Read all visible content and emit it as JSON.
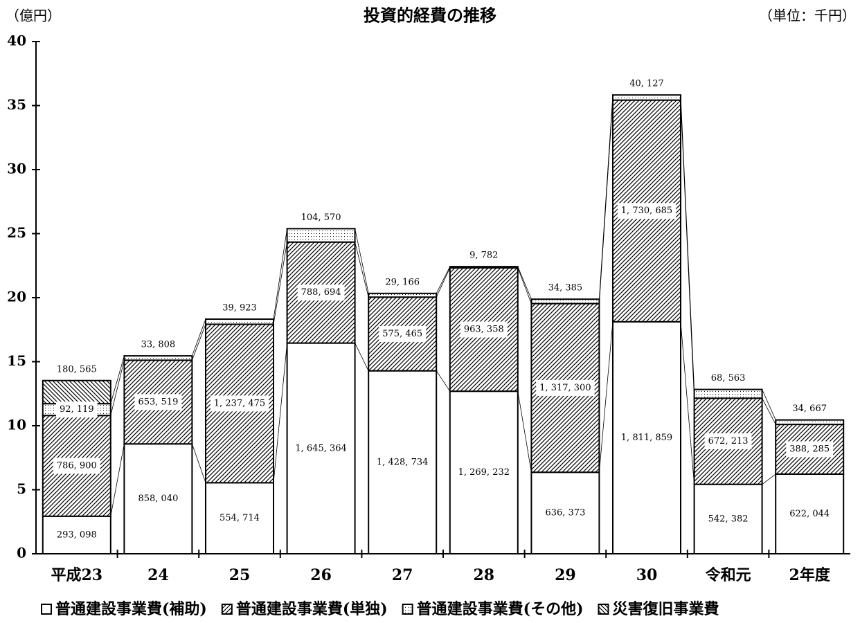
{
  "chart_data": {
    "type": "stacked_bar",
    "title": "投資的経費の推移",
    "y_axis_label": "（億円）",
    "unit_note": "（単位：千円）",
    "categories": [
      "平成23",
      "24",
      "25",
      "26",
      "27",
      "28",
      "29",
      "30",
      "令和元",
      "2年度"
    ],
    "ylim": [
      0,
      40
    ],
    "yticks": [
      0,
      5,
      10,
      15,
      20,
      25,
      30,
      35,
      40
    ],
    "series": [
      {
        "name": "普通建設事業費(補助)",
        "values": [
          2.93098,
          8.5804,
          5.54714,
          16.45364,
          14.28734,
          12.69232,
          6.36373,
          18.11859,
          5.42382,
          6.22044
        ],
        "value_labels": [
          "293, 098",
          "858, 040",
          "554, 714",
          "1, 645, 364",
          "1, 428, 734",
          "1, 269, 232",
          "636, 373",
          "1, 811, 859",
          "542, 382",
          "622, 044"
        ]
      },
      {
        "name": "普通建設事業費(単独)",
        "values": [
          7.869,
          6.53519,
          12.37475,
          7.88694,
          5.75465,
          9.63358,
          13.173,
          17.30685,
          6.72213,
          3.88285
        ],
        "value_labels": [
          "786, 900",
          "653, 519",
          "1, 237, 475",
          "788, 694",
          "575, 465",
          "963, 358",
          "1, 317, 300",
          "1, 730, 685",
          "672, 213",
          "388, 285"
        ]
      },
      {
        "name": "普通建設事業費(その他)",
        "values": [
          0.92119,
          0.33808,
          0.39923,
          1.0457,
          0.29166,
          0.09782,
          0.34385,
          0.40127,
          0.68563,
          0.34667
        ],
        "value_labels": [
          "92, 119",
          "33, 808",
          "39, 923",
          "104, 570",
          "29, 166",
          "9, 782",
          "34, 385",
          "40, 127",
          "68, 563",
          "34, 667"
        ]
      },
      {
        "name": "災害復旧事業費",
        "values": [
          1.80565,
          null,
          null,
          null,
          null,
          null,
          null,
          null,
          null,
          null
        ],
        "value_labels": [
          "180, 565",
          null,
          null,
          null,
          null,
          null,
          null,
          null,
          null,
          null
        ]
      }
    ]
  }
}
